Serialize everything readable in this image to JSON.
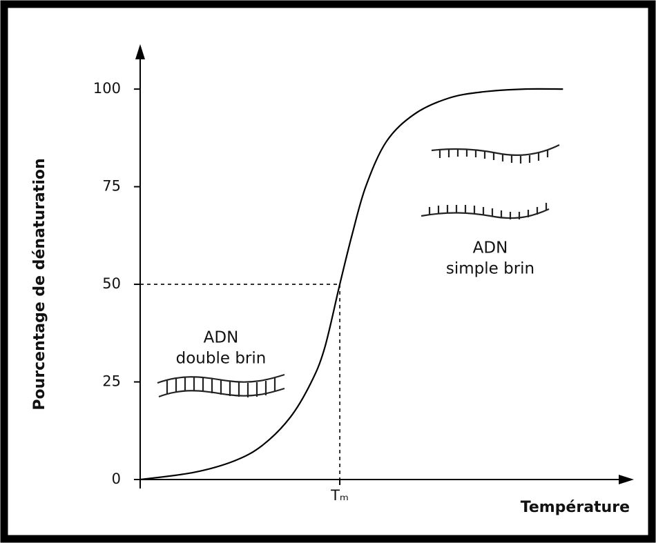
{
  "chart_data": {
    "type": "line",
    "x_label": "Température",
    "y_label": "Pourcentage de dénaturation",
    "x": [
      0,
      10.8,
      19.2,
      24.9,
      30.5,
      34.7,
      37.5,
      40.6,
      43.1,
      45.9,
      50.1,
      55.8,
      62.8,
      69.8,
      78.2,
      86
    ],
    "values": [
      0,
      1.8,
      4.8,
      8.8,
      15.9,
      24.7,
      33.6,
      50,
      62.7,
      75.1,
      86.6,
      93.6,
      97.7,
      99.3,
      100,
      100
    ],
    "color": "#000000",
    "xlim": [
      0,
      100
    ],
    "ylim": [
      0,
      110.8
    ],
    "xticks": [
      {
        "value": 40.6,
        "label": "Tₘ"
      }
    ],
    "yticks": [
      0,
      25,
      50,
      75,
      100
    ],
    "annotations": [
      {
        "lines": [
          "ADN",
          "double brin"
        ]
      },
      {
        "lines": [
          "ADN",
          "simple brin"
        ]
      }
    ]
  }
}
